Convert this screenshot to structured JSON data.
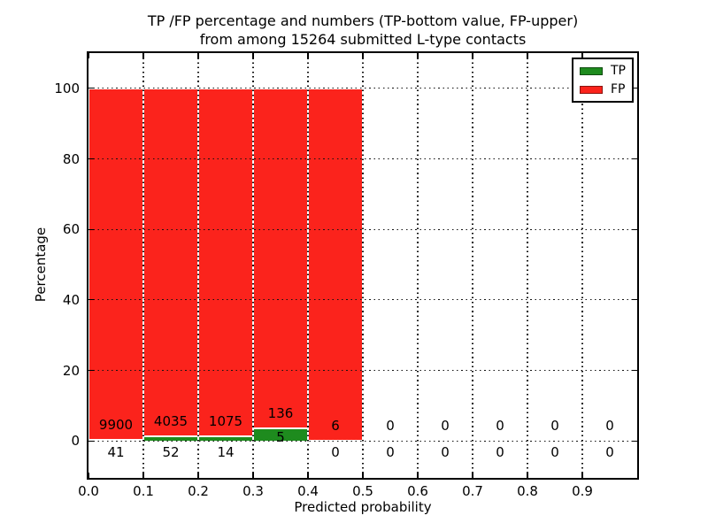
{
  "title": {
    "line1": "TP /FP percentage and numbers (TP-bottom value, FP-upper)",
    "line2": "from among 15264 submitted L-type contacts"
  },
  "axes": {
    "xlabel": "Predicted probability",
    "ylabel": "Percentage"
  },
  "chart_data": {
    "type": "bar",
    "stacked": true,
    "title": "TP /FP percentage and numbers (TP-bottom value, FP-upper) from among 15264 submitted L-type contacts",
    "xlabel": "Predicted probability",
    "ylabel": "Percentage",
    "total_submitted_contacts": 15264,
    "bin_edges": [
      0.0,
      0.1,
      0.2,
      0.3,
      0.4,
      0.5,
      0.6,
      0.7,
      0.8,
      0.9,
      1.0
    ],
    "xtick_labels": [
      "0.0",
      "0.1",
      "0.2",
      "0.3",
      "0.4",
      "0.5",
      "0.6",
      "0.7",
      "0.8",
      "0.9"
    ],
    "ytick_values": [
      0,
      20,
      40,
      60,
      80,
      100
    ],
    "xlim": [
      0,
      1.0
    ],
    "ylim": [
      -10.5,
      110
    ],
    "grid": "dotted",
    "legend_position": "upper right",
    "series": [
      {
        "name": "TP",
        "color": "#1e8b1e",
        "counts": [
          41,
          52,
          14,
          5,
          0,
          0,
          0,
          0,
          0,
          0
        ],
        "percent": [
          0.41,
          1.27,
          1.29,
          3.55,
          0,
          0,
          0,
          0,
          0,
          0
        ]
      },
      {
        "name": "FP",
        "color": "#fb231c",
        "counts": [
          9900,
          4035,
          1075,
          136,
          6,
          0,
          0,
          0,
          0,
          0
        ],
        "percent": [
          99.59,
          98.73,
          98.71,
          96.45,
          100,
          0,
          0,
          0,
          0,
          0
        ]
      }
    ]
  }
}
